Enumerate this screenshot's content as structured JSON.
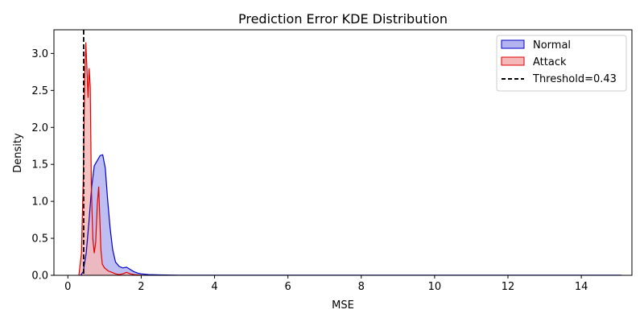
{
  "chart_data": {
    "type": "area",
    "title": "Prediction Error KDE Distribution",
    "xlabel": "MSE",
    "ylabel": "Density",
    "xlim": [
      -0.38,
      15.38
    ],
    "ylim": [
      0,
      3.32
    ],
    "xticks": [
      0,
      2,
      4,
      6,
      8,
      10,
      12,
      14
    ],
    "yticks": [
      0.0,
      0.5,
      1.0,
      1.5,
      2.0,
      2.5,
      3.0
    ],
    "grid": false,
    "legend_position": "top-right",
    "threshold": {
      "name": "Threshold=0.43",
      "value": 0.43,
      "color": "#000000",
      "style": "dashed"
    },
    "series": [
      {
        "name": "Normal",
        "color": "#0000cc",
        "fill": "#b3b3f0",
        "x": [
          0.35,
          0.42,
          0.5,
          0.58,
          0.65,
          0.72,
          0.8,
          0.88,
          0.95,
          1.02,
          1.08,
          1.15,
          1.22,
          1.3,
          1.4,
          1.5,
          1.6,
          1.7,
          1.8,
          1.9,
          2.0,
          2.2,
          2.5,
          3.0,
          4.0,
          6.0,
          8.0,
          10.0,
          12.0,
          14.0,
          15.1
        ],
        "y": [
          0.0,
          0.05,
          0.3,
          0.75,
          1.2,
          1.48,
          1.55,
          1.62,
          1.63,
          1.45,
          1.05,
          0.65,
          0.35,
          0.18,
          0.12,
          0.1,
          0.11,
          0.08,
          0.05,
          0.03,
          0.02,
          0.01,
          0.005,
          0.002,
          0.002,
          0.002,
          0.002,
          0.002,
          0.002,
          0.002,
          0.002
        ]
      },
      {
        "name": "Attack",
        "color": "#e00000",
        "fill": "#f5b8b8",
        "x": [
          0.3,
          0.37,
          0.42,
          0.46,
          0.49,
          0.52,
          0.55,
          0.58,
          0.61,
          0.64,
          0.68,
          0.72,
          0.76,
          0.8,
          0.84,
          0.87,
          0.9,
          0.94,
          1.0,
          1.1,
          1.2,
          1.3,
          1.4,
          1.5,
          1.6,
          1.7,
          1.8,
          1.9,
          2.0,
          2.1
        ],
        "y": [
          0.0,
          0.3,
          1.3,
          2.7,
          3.15,
          2.8,
          2.4,
          2.8,
          2.55,
          1.2,
          0.5,
          0.3,
          0.45,
          0.95,
          1.2,
          0.8,
          0.35,
          0.15,
          0.1,
          0.06,
          0.04,
          0.02,
          0.01,
          0.02,
          0.04,
          0.02,
          0.01,
          0.005,
          0.002,
          0.0
        ]
      }
    ]
  }
}
